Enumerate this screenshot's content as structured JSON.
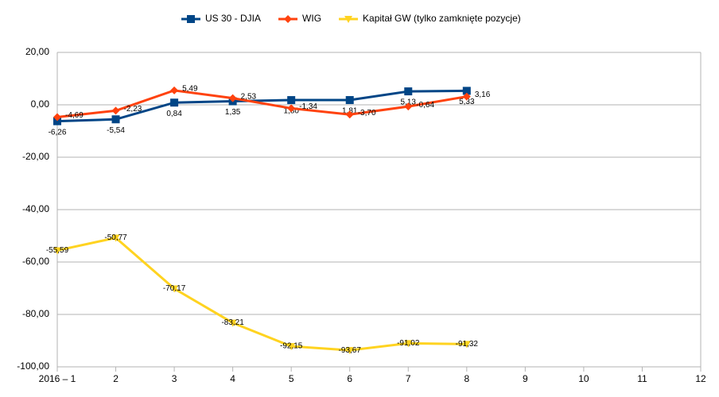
{
  "chart_data": {
    "type": "line",
    "categories": [
      "2016 – 1",
      "2",
      "3",
      "4",
      "5",
      "6",
      "7",
      "8",
      "9",
      "10",
      "11",
      "12"
    ],
    "series": [
      {
        "name": "US 30 - DJIA",
        "color": "#004586",
        "marker": "square",
        "values": [
          -6.26,
          -5.54,
          0.84,
          1.35,
          1.8,
          1.81,
          5.13,
          5.33,
          null,
          null,
          null,
          null
        ],
        "value_labels": [
          "-6,26",
          "-5,54",
          "0,84",
          "1,35",
          "1,80",
          "1,81",
          "5,13",
          "5,33",
          null,
          null,
          null,
          null
        ]
      },
      {
        "name": "WIG",
        "color": "#ff420e",
        "marker": "diamond",
        "values": [
          -4.69,
          -2.23,
          5.49,
          2.53,
          -1.34,
          -3.7,
          -0.64,
          3.16,
          null,
          null,
          null,
          null
        ],
        "value_labels": [
          "-4,69",
          "-2,23",
          "5,49",
          "2,53",
          "-1,34",
          "-3,70",
          "-0,64",
          "3,16",
          null,
          null,
          null,
          null
        ]
      },
      {
        "name": "Kapitał GW (tylko zamknięte pozycje)",
        "color": "#ffd320",
        "marker": "triangle-down",
        "values": [
          -55.59,
          -50.77,
          -70.17,
          -83.21,
          -92.15,
          -93.67,
          -91.02,
          -91.32,
          null,
          null,
          null,
          null
        ],
        "value_labels": [
          "-55,59",
          "-50,77",
          "-70,17",
          "-83,21",
          "-92,15",
          "-93,67",
          "-91,02",
          "-91,32",
          null,
          null,
          null,
          null
        ]
      }
    ],
    "ylim": [
      -100,
      20
    ],
    "yticks": [
      {
        "value": -100,
        "label": "-100,00"
      },
      {
        "value": -80,
        "label": "-80,00"
      },
      {
        "value": -60,
        "label": "-60,00"
      },
      {
        "value": -40,
        "label": "-40,00"
      },
      {
        "value": -20,
        "label": "-20,00"
      },
      {
        "value": 0,
        "label": "0,00"
      },
      {
        "value": 20,
        "label": "20,00"
      }
    ],
    "grid": true,
    "legend": "top"
  }
}
